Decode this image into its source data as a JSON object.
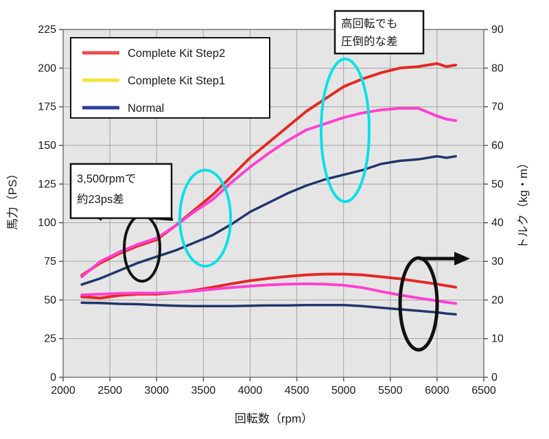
{
  "chart_data": {
    "type": "line",
    "title": "",
    "xlabel": "回転数（rpm）",
    "ylabel_left": "馬力（PS）",
    "ylabel_right": "トルク（kg・m）",
    "x_range": [
      2000,
      6500
    ],
    "y_left_range": [
      0,
      225
    ],
    "y_right_range": [
      0,
      90
    ],
    "x_ticks": [
      2000,
      2500,
      3000,
      3500,
      4000,
      4500,
      5000,
      5500,
      6000,
      6500
    ],
    "y_left_ticks": [
      0,
      25,
      50,
      75,
      100,
      125,
      150,
      175,
      200,
      225
    ],
    "y_right_ticks": [
      0,
      10,
      20,
      30,
      40,
      50,
      60,
      70,
      80,
      90
    ],
    "grid": true,
    "plot_bg_color": "#e5e5e5",
    "legend": {
      "position": "top-left",
      "entries": [
        {
          "label": "Complete Kit Step2",
          "color": "#e94d4f"
        },
        {
          "label": "Complete Kit Step1",
          "color": "#f4e23d"
        },
        {
          "label": "Normal",
          "color": "#2f3f9e"
        }
      ]
    },
    "rpm": [
      2200,
      2400,
      2600,
      2800,
      3000,
      3200,
      3400,
      3600,
      3800,
      4000,
      4200,
      4400,
      4600,
      4800,
      5000,
      5200,
      5400,
      5600,
      5800,
      6000,
      6100,
      6200
    ],
    "series": [
      {
        "name": "Complete Kit Step2 power",
        "axis": "left",
        "unit": "PS",
        "color": "#e42824",
        "width": 4,
        "values": [
          66,
          74,
          80,
          85,
          89,
          98,
          108,
          118,
          130,
          142,
          152,
          162,
          172,
          180,
          188,
          193,
          197,
          200,
          201,
          203,
          201,
          202
        ]
      },
      {
        "name": "Complete Kit Step2 torque",
        "axis": "right",
        "unit": "kg·m",
        "color": "#e42824",
        "width": 4,
        "values": [
          20.8,
          20.5,
          21.2,
          21.5,
          21.5,
          21.9,
          22.5,
          23.3,
          24.2,
          25.0,
          25.6,
          26.1,
          26.5,
          26.7,
          26.7,
          26.5,
          26.0,
          25.5,
          24.8,
          24.1,
          23.7,
          23.3
        ]
      },
      {
        "name": "Complete Kit Step1 power",
        "axis": "left",
        "unit": "PS",
        "color": "#ff40d0",
        "width": 4,
        "values": [
          65,
          75,
          81,
          86,
          90,
          98,
          107,
          115,
          126,
          136,
          145,
          153,
          160,
          164,
          168,
          171,
          173,
          174,
          174,
          169,
          167,
          166
        ]
      },
      {
        "name": "Complete Kit Step1 torque",
        "axis": "right",
        "unit": "kg·m",
        "color": "#ff40d0",
        "width": 4,
        "values": [
          21.3,
          21.5,
          21.7,
          21.8,
          21.8,
          22.0,
          22.3,
          22.8,
          23.2,
          23.6,
          23.9,
          24.1,
          24.2,
          24.1,
          23.8,
          23.2,
          22.2,
          21.3,
          20.5,
          19.8,
          19.4,
          19.1
        ]
      },
      {
        "name": "Normal power",
        "axis": "left",
        "unit": "PS",
        "color": "#22356b",
        "width": 3.5,
        "values": [
          60,
          64,
          69,
          74,
          78,
          82,
          87,
          92,
          99,
          107,
          113,
          119,
          124,
          128,
          131,
          134,
          138,
          140,
          141,
          143,
          142,
          143
        ]
      },
      {
        "name": "Normal torque",
        "axis": "right",
        "unit": "kg·m",
        "color": "#22356b",
        "width": 3.5,
        "values": [
          19.3,
          19.2,
          19.0,
          18.9,
          18.7,
          18.5,
          18.4,
          18.4,
          18.4,
          18.5,
          18.6,
          18.6,
          18.7,
          18.7,
          18.7,
          18.4,
          18.0,
          17.6,
          17.2,
          16.8,
          16.5,
          16.3
        ]
      }
    ],
    "annotations": {
      "box1": {
        "lines": [
          "3,500rpmで",
          "約23ps差"
        ]
      },
      "box2": {
        "lines": [
          "高回転でも",
          "圧倒的な差"
        ]
      },
      "highlight_color": "#0ae0e6"
    }
  }
}
